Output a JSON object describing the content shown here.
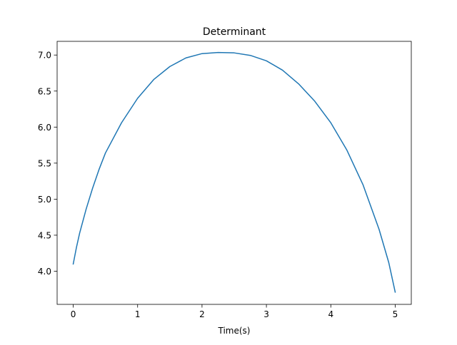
{
  "chart_data": {
    "type": "line",
    "title": "Determinant",
    "xlabel": "Time(s)",
    "ylabel": "",
    "xlim": [
      -0.25,
      5.25
    ],
    "ylim": [
      3.54,
      7.19
    ],
    "xticks": [
      0,
      1,
      2,
      3,
      4,
      5
    ],
    "xtick_labels": [
      "0",
      "1",
      "2",
      "3",
      "4",
      "5"
    ],
    "yticks": [
      4.0,
      4.5,
      5.0,
      5.5,
      6.0,
      6.5,
      7.0
    ],
    "ytick_labels": [
      "4.0",
      "4.5",
      "5.0",
      "5.5",
      "6.0",
      "6.5",
      "7.0"
    ],
    "grid": false,
    "legend": "none",
    "series": [
      {
        "color": "#1f77b4",
        "x": [
          0,
          0.05,
          0.1,
          0.2,
          0.3,
          0.4,
          0.5,
          0.75,
          1.0,
          1.25,
          1.5,
          1.75,
          2.0,
          2.25,
          2.5,
          2.75,
          3.0,
          3.25,
          3.5,
          3.75,
          4.0,
          4.25,
          4.5,
          4.75,
          4.9,
          5.0
        ],
        "y": [
          4.1,
          4.33,
          4.53,
          4.86,
          5.15,
          5.41,
          5.64,
          6.06,
          6.4,
          6.66,
          6.84,
          6.96,
          7.02,
          7.035,
          7.03,
          6.995,
          6.92,
          6.79,
          6.6,
          6.36,
          6.06,
          5.68,
          5.2,
          4.58,
          4.12,
          3.71
        ]
      }
    ]
  }
}
